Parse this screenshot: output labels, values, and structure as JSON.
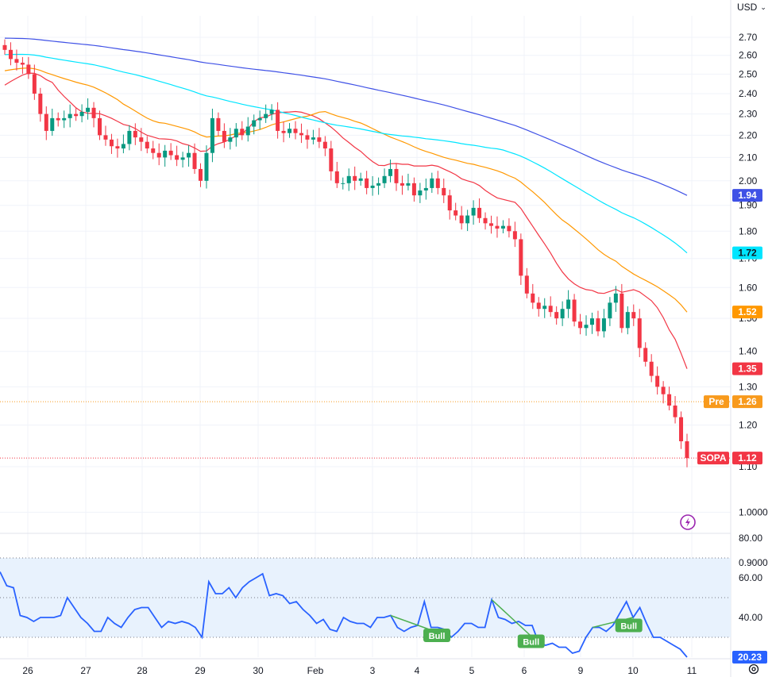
{
  "currency_selector": "USD",
  "chevron_icon": "chevron-down-icon",
  "lightning_icon": "lightning-icon",
  "settings_icon": "settings-gear-icon",
  "chart_data": [
    {
      "type": "candlestick",
      "title": "",
      "y_scale": "log",
      "ylim": [
        0.87,
        2.8
      ],
      "x_labels": [
        "26",
        "27",
        "28",
        "29",
        "30",
        "Feb",
        "3",
        "4",
        "5",
        "6",
        "9",
        "10",
        "11"
      ],
      "y_ticks": [
        "2.70",
        "2.60",
        "2.50",
        "2.40",
        "2.30",
        "2.20",
        "2.10",
        "2.00",
        "1.90",
        "1.80",
        "1.70",
        "1.60",
        "1.50",
        "1.40",
        "1.30",
        "1.20",
        "1.10",
        "1.0000",
        "0.9000"
      ],
      "close_series": [
        2.63,
        2.58,
        2.56,
        2.55,
        2.5,
        2.4,
        2.3,
        2.22,
        2.28,
        2.27,
        2.28,
        2.3,
        2.29,
        2.31,
        2.33,
        2.28,
        2.2,
        2.18,
        2.15,
        2.14,
        2.16,
        2.22,
        2.19,
        2.17,
        2.14,
        2.12,
        2.1,
        2.13,
        2.11,
        2.09,
        2.1,
        2.12,
        2.05,
        2.0,
        2.12,
        2.28,
        2.22,
        2.17,
        2.19,
        2.23,
        2.2,
        2.24,
        2.27,
        2.28,
        2.3,
        2.32,
        2.22,
        2.21,
        2.23,
        2.21,
        2.2,
        2.18,
        2.19,
        2.17,
        2.14,
        2.04,
        1.99,
        1.99,
        2.02,
        2.0,
        2.01,
        1.97,
        1.98,
        1.99,
        2.02,
        2.05,
        1.99,
        1.98,
        1.99,
        1.94,
        1.96,
        1.97,
        2.01,
        1.97,
        1.94,
        1.88,
        1.86,
        1.83,
        1.86,
        1.89,
        1.85,
        1.83,
        1.82,
        1.81,
        1.82,
        1.8,
        1.77,
        1.64,
        1.58,
        1.55,
        1.53,
        1.54,
        1.52,
        1.5,
        1.53,
        1.56,
        1.49,
        1.47,
        1.48,
        1.5,
        1.46,
        1.5,
        1.55,
        1.58,
        1.47,
        1.52,
        1.5,
        1.41,
        1.37,
        1.33,
        1.3,
        1.28,
        1.25,
        1.22,
        1.16,
        1.12
      ],
      "moving_averages": [
        {
          "color": "#f23645",
          "last_value": 1.35
        },
        {
          "color": "#ff9800",
          "last_value": 1.52
        },
        {
          "color": "#00e5ff",
          "last_value": 1.72
        },
        {
          "color": "#3f51e6",
          "last_value": 1.94
        }
      ],
      "price_lines": [
        {
          "label": "Pre",
          "value_text": "1.26",
          "value": 1.26,
          "color": "#f89a1c"
        },
        {
          "label": "SOPA",
          "value_text": "1.12",
          "value": 1.12,
          "color": "#f23645"
        }
      ],
      "colors": {
        "up": "#089981",
        "down": "#f23645"
      }
    },
    {
      "type": "line",
      "title": "",
      "ylim": [
        18,
        82
      ],
      "y_ticks": [
        "80.00",
        "60.00",
        "40.00"
      ],
      "band": [
        30,
        70
      ],
      "midline": 50,
      "last_value": "20.23",
      "line_color": "#2962ff",
      "values": [
        63,
        56,
        55,
        41,
        40,
        38,
        40,
        40,
        40,
        41,
        50,
        45,
        40,
        37,
        33,
        33,
        40,
        37,
        35,
        40,
        44,
        45,
        45,
        40,
        35,
        38,
        37,
        38,
        37,
        35,
        30,
        58,
        52,
        52,
        55,
        50,
        55,
        58,
        60,
        62,
        51,
        52,
        51,
        47,
        48,
        44,
        41,
        37,
        39,
        34,
        33,
        40,
        38,
        37,
        37,
        35,
        40,
        40,
        41,
        35,
        33,
        35,
        36,
        48,
        35,
        35,
        34,
        30,
        33,
        37,
        37,
        35,
        35,
        49,
        40,
        39,
        37,
        38,
        36,
        36,
        27,
        26,
        27,
        25,
        25,
        22,
        23,
        30,
        35,
        35,
        33,
        36,
        42,
        48,
        40,
        45,
        37,
        30,
        30,
        28,
        26,
        24,
        20
      ],
      "divergence_labels": [
        "Bull",
        "Bull",
        "Bull"
      ]
    }
  ]
}
